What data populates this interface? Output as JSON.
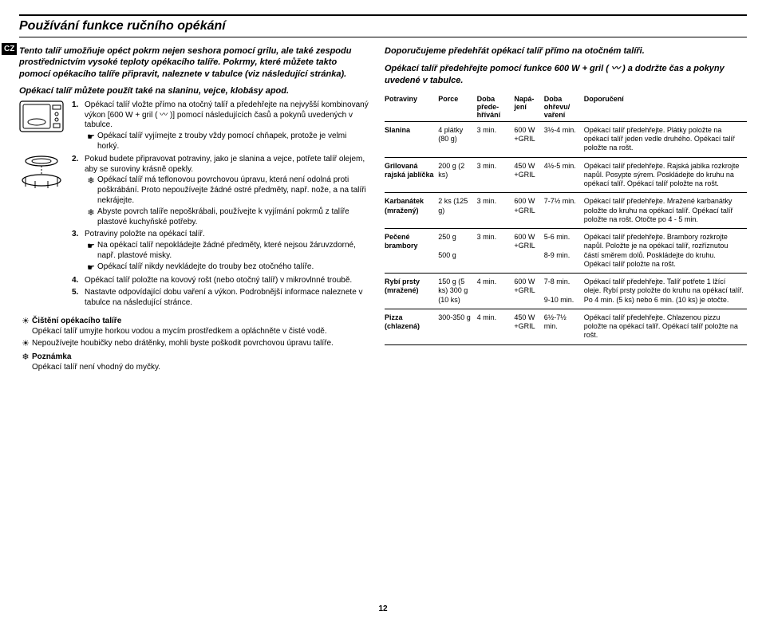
{
  "lang_badge": "CZ",
  "title": "Používání funkce ručního opékání",
  "intro": "Tento talíř umožňuje opéct pokrm nejen seshora pomocí grilu, ale také zespodu prostřednictvím vysoké teploty opékacího talíře. Pokrmy, které můžete takto pomocí opékacího talíře připravit, naleznete v tabulce (viz následující stránka).",
  "sub_intro": "Opékací talíř můžete použít také na slaninu, vejce, klobásy apod.",
  "steps": {
    "s1": "Opékací talíř vložte přímo na otočný talíř a předehřejte na nejvyšší kombinovaný výkon [600 W + gril ( 〰 )] pomocí následujících časů a pokynů uvedených v tabulce.",
    "s1a": "Opékací talíř vyjímejte z trouby vždy pomocí chňapek, protože je velmi horký.",
    "s2": "Pokud budete připravovat potraviny, jako je slanina a vejce, potřete talíř olejem, aby se suroviny krásně opekly.",
    "s2a": "Opékací talíř má teflonovou povrchovou úpravu, která není odolná proti poškrábání. Proto nepoužívejte žádné ostré předměty, např. nože, a na talíři nekrájejte.",
    "s2b": "Abyste povrch talíře nepoškrábali, používejte k vyjímání pokrmů z talíře plastové kuchyňské potřeby.",
    "s3": "Potraviny položte na opékací talíř.",
    "s3a": "Na opékací talíř nepokládejte žádné předměty, které nejsou žáruvzdorné, např. plastové misky.",
    "s3b": "Opékací talíř nikdy nevkládejte do trouby bez otočného talíře.",
    "s4": "Opékací talíř položte na kovový rošt (nebo otočný talíř) v mikrovlnné troubě.",
    "s5": "Nastavte odpovídající dobu vaření a výkon. Podrobnější informace naleznete v tabulce na následující stránce."
  },
  "cleaning": {
    "title": "Čištění opékacího talíře",
    "c1": "Opékací talíř umyjte horkou vodou a mycím prostředkem a opláchněte v čisté vodě.",
    "c2": "Nepoužívejte houbičky nebo drátěnky, mohli byste poškodit povrchovou úpravu talíře.",
    "note_lbl": "Poznámka",
    "note": "Opékací talíř není vhodný do myčky."
  },
  "rec_head1": "Doporučujeme předehřát opékací talíř přímo na otočném talíři.",
  "rec_head2": "Opékací talíř předehřejte pomocí funkce 600 W + gril ( 〰 ) a dodržte čas a pokyny uvedené v tabulce.",
  "table": {
    "headers": {
      "food": "Potraviny",
      "portion": "Porce",
      "preheat": "Doba přede-hřívání",
      "power": "Napá-jení",
      "cook": "Doba ohřevu/ vaření",
      "rec": "Doporučení"
    },
    "rows": [
      {
        "food": "Slanina",
        "portion": "4 plátky (80 g)",
        "preheat": "3 min.",
        "power": "600 W +GRIL",
        "cook": "3½-4 min.",
        "rec": "Opékací talíř předehřejte. Plátky položte na opékací talíř jeden vedle druhého. Opékací talíř položte na rošt."
      },
      {
        "food": "Grilovaná rajská jablíčka",
        "portion": "200 g (2 ks)",
        "preheat": "3 min.",
        "power": "450 W +GRIL",
        "cook": "4½-5 min.",
        "rec": "Opékací talíř předehřejte. Rajská jablka rozkrojte napůl. Posypte sýrem. Poskládejte do kruhu na opékací talíř. Opékací talíř položte na rošt."
      },
      {
        "food": "Karbanátek (mražený)",
        "portion": "2 ks (125 g)",
        "preheat": "3 min.",
        "power": "600 W +GRIL",
        "cook": "7-7½ min.",
        "rec": "Opékací talíř předehřejte. Mražené karbanátky položte do kruhu na opékací talíř. Opékací talíř položte na rošt. Otočte po 4 - 5 min."
      },
      {
        "food": "Pečené brambory",
        "portion": "250 g\n\n500 g",
        "preheat": "3 min.",
        "power": "600 W +GRIL",
        "cook": "5-6 min.\n\n8-9 min.",
        "rec": "Opékací talíř předehřejte. Brambory rozkrojte napůl. Položte je na opékací talíř, rozříznutou částí směrem dolů. Poskládejte do kruhu. Opékací talíř položte na rošt."
      },
      {
        "food": "Rybí prsty (mražené)",
        "portion": "150 g (5 ks) 300 g (10 ks)",
        "preheat": "4 min.",
        "power": "600 W +GRIL",
        "cook": "7-8 min.\n\n9-10 min.",
        "rec": "Opékací talíř předehřejte. Talíř potřete 1 lžící oleje. Rybí prsty položte do kruhu na opékací talíř. Po 4 min. (5 ks) nebo 6 min. (10 ks) je otočte."
      },
      {
        "food": "Pizza (chlazená)",
        "portion": "300-350 g",
        "preheat": "4 min.",
        "power": "450 W +GRIL",
        "cook": "6½-7½ min.",
        "rec": "Opékací talíř předehřejte. Chlazenou pizzu položte na opékací talíř. Opékací talíř položte na rošt."
      }
    ]
  },
  "page_number": "12"
}
